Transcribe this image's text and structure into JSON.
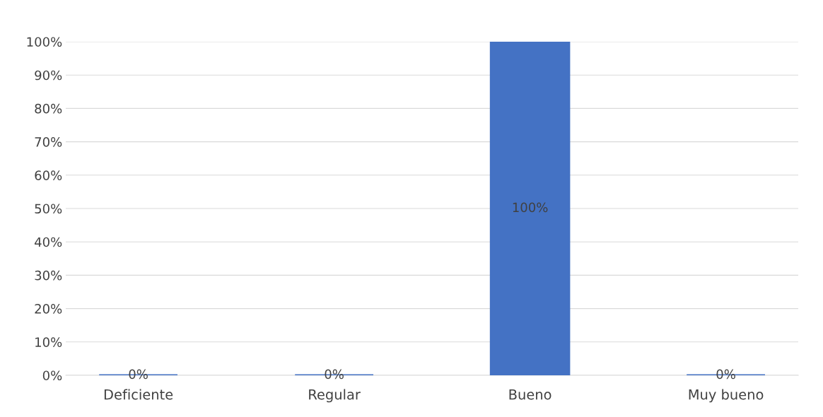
{
  "chart_data": {
    "type": "bar",
    "categories": [
      "Deficiente",
      "Regular",
      "Bueno",
      "Muy bueno"
    ],
    "values": [
      0,
      0,
      100,
      0
    ],
    "value_labels": [
      "0%",
      "0%",
      "100%",
      "0%"
    ],
    "color": "#4472c4",
    "ylim": [
      0,
      100
    ],
    "yticks": [
      {
        "value": 0,
        "label": "0%"
      },
      {
        "value": 10,
        "label": "10%"
      },
      {
        "value": 20,
        "label": "20%"
      },
      {
        "value": 30,
        "label": "30%"
      },
      {
        "value": 40,
        "label": "40%"
      },
      {
        "value": 50,
        "label": "50%"
      },
      {
        "value": 60,
        "label": "60%"
      },
      {
        "value": 70,
        "label": "70%"
      },
      {
        "value": 80,
        "label": "80%"
      },
      {
        "value": 90,
        "label": "90%"
      },
      {
        "value": 100,
        "label": "100%"
      }
    ],
    "grid": "y",
    "legend": false
  }
}
